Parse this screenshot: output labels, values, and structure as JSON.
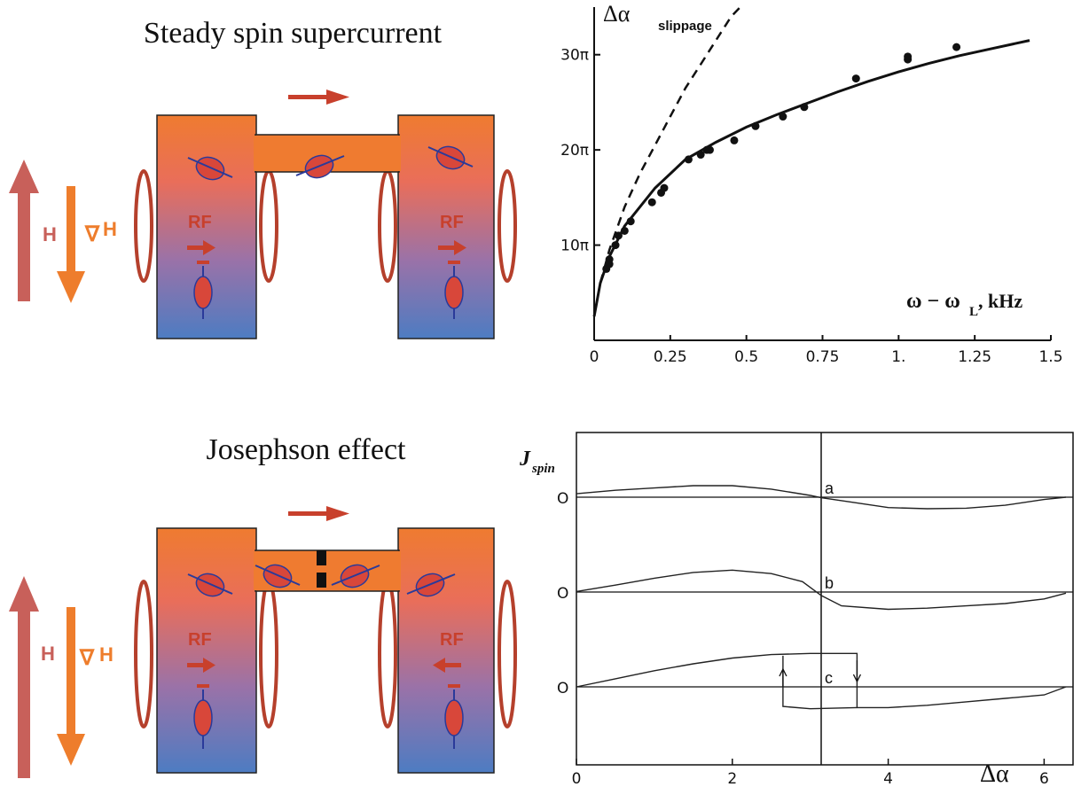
{
  "panels": {
    "top_title": "Steady spin supercurrent",
    "bottom_title": "Josephson effect",
    "labels": {
      "H": "H",
      "gradH_symbol": "∇",
      "gradH_H": "H",
      "rf": "RF"
    }
  },
  "colors": {
    "arrow_h": "#c8605a",
    "arrow_grad": "#ee7d2c",
    "box_top": "#ef7b30",
    "box_bottom": "#4d7cc2",
    "coil": "#b5402c",
    "flow_arrow": "#c8402c",
    "spin": "#d8473a",
    "spin_outline": "#2a3a9a"
  },
  "chart_data": [
    {
      "type": "scatter",
      "title": "",
      "ylabel": "Δα",
      "ylabel_subscript": "slippage",
      "xlabel": "ω − ω",
      "xlabel_subscript": "L",
      "xlabel_unit": ", kHz",
      "xlim": [
        0,
        1.5
      ],
      "ylim": [
        0,
        35
      ],
      "xticks": [
        0,
        0.25,
        0.5,
        0.75,
        1.0,
        1.25,
        1.5
      ],
      "xtick_labels": [
        "0",
        "0.25",
        "0.5",
        "0.75",
        "1.",
        "1.25",
        "1.5"
      ],
      "yticks": [
        10,
        20,
        30
      ],
      "ytick_labels": [
        "10π",
        "20π",
        "30π"
      ],
      "series": [
        {
          "kind": "points",
          "x": [
            0.04,
            0.05,
            0.05,
            0.07,
            0.08,
            0.1,
            0.12,
            0.19,
            0.22,
            0.23,
            0.31,
            0.35,
            0.37,
            0.38,
            0.46,
            0.53,
            0.62,
            0.69,
            0.86,
            1.03,
            1.03,
            1.19
          ],
          "y": [
            7.5,
            8.0,
            8.5,
            10.0,
            11.0,
            11.5,
            12.5,
            14.5,
            15.5,
            16.0,
            19.0,
            19.5,
            20.0,
            20.0,
            21.0,
            22.5,
            23.5,
            24.5,
            27.5,
            29.5,
            29.8,
            30.8
          ]
        },
        {
          "kind": "solid-curve",
          "x": [
            0.0,
            0.02,
            0.05,
            0.1,
            0.2,
            0.3,
            0.4,
            0.5,
            0.6,
            0.7,
            0.8,
            0.9,
            1.0,
            1.1,
            1.2,
            1.3,
            1.43
          ],
          "y": [
            2.5,
            6.0,
            8.8,
            12.0,
            16.0,
            19.0,
            20.8,
            22.4,
            23.7,
            24.9,
            26.1,
            27.2,
            28.2,
            29.1,
            29.9,
            30.6,
            31.5
          ]
        },
        {
          "kind": "dashed-curve",
          "x": [
            0.02,
            0.05,
            0.1,
            0.15,
            0.2,
            0.25,
            0.3,
            0.35,
            0.4,
            0.45,
            0.48
          ],
          "y": [
            6.0,
            9.5,
            14.0,
            17.5,
            20.5,
            23.5,
            26.5,
            29.0,
            31.5,
            34.0,
            35.0
          ]
        }
      ]
    },
    {
      "type": "line",
      "title": "",
      "ylabel": "J",
      "ylabel_subscript": "spin",
      "xlabel": "Δα",
      "xlim": [
        0,
        6.28
      ],
      "xticks": [
        0,
        2,
        4,
        6
      ],
      "xtick_labels": [
        "0",
        "2",
        "4",
        "6"
      ],
      "zero_label": "O",
      "vertical_marker": 3.14,
      "series": [
        {
          "name": "a",
          "x": [
            0,
            0.5,
            1.0,
            1.5,
            2.0,
            2.5,
            3.0,
            3.14,
            3.5,
            4.0,
            4.5,
            5.0,
            5.5,
            6.0,
            6.28
          ],
          "y": [
            0.3,
            0.6,
            0.8,
            1.0,
            1.0,
            0.7,
            0.15,
            -0.05,
            -0.4,
            -0.9,
            -1.0,
            -0.95,
            -0.7,
            -0.2,
            0.0
          ]
        },
        {
          "name": "b",
          "x": [
            0,
            0.5,
            1.0,
            1.5,
            2.0,
            2.5,
            2.9,
            3.14,
            3.4,
            4.0,
            4.5,
            5.0,
            5.5,
            6.0,
            6.28
          ],
          "y": [
            0.05,
            0.6,
            1.2,
            1.7,
            1.9,
            1.6,
            0.9,
            -0.3,
            -1.2,
            -1.5,
            -1.4,
            -1.2,
            -1.0,
            -0.6,
            -0.1
          ]
        },
        {
          "name": "c",
          "x": [
            0,
            0.5,
            1.0,
            1.5,
            2.0,
            2.5,
            3.0,
            3.6,
            3.6,
            4.0,
            4.5,
            5.0,
            5.5,
            6.0,
            6.28
          ],
          "y": [
            0.0,
            0.7,
            1.4,
            2.0,
            2.5,
            2.8,
            2.9,
            2.9,
            -1.8,
            -1.8,
            -1.6,
            -1.3,
            -1.0,
            -0.7,
            0.0
          ]
        },
        {
          "name": "c-return",
          "x": [
            2.65,
            2.65,
            3.0,
            3.6
          ],
          "y": [
            2.7,
            -1.7,
            -1.9,
            -1.8
          ]
        }
      ]
    }
  ]
}
